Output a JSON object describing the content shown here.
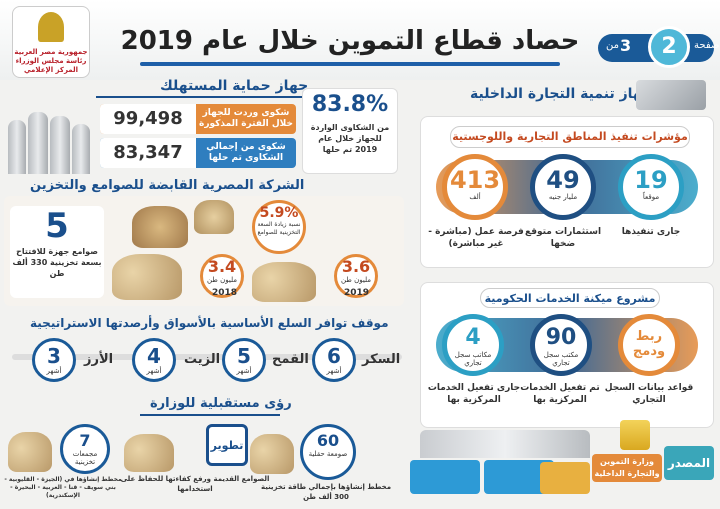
{
  "header": {
    "title": "حصاد قطاع التموين خلال عام 2019",
    "page_label": "صفحة",
    "page_number": "2",
    "page_of": "من",
    "page_total": "3",
    "logo_text": "جمهورية مصر العربية رئاسة مجلس الوزراء المركز الإعلامي"
  },
  "consumer_protection": {
    "heading": "جهاز حماية المستهلك",
    "rows": [
      {
        "value": "99,498",
        "desc": "شكوى وردت للجهاز خلال الفترة المذكورة"
      },
      {
        "value": "83,347",
        "desc": "شكوى من إجمالي الشكاوى تم حلها"
      }
    ],
    "pct_value": "83.8%",
    "pct_desc": "من الشكاوى الواردة للجهاز خلال عام 2019 تم حلها"
  },
  "holding_company": {
    "heading": "الشركة المصرية القابضة للصوامع والتخزين",
    "silos_num": "5",
    "silos_desc": "صوامع جهزة للافتتاح بسعة تخزينية 330 ألف طن",
    "growth_value": "5.9%",
    "growth_desc": "نسبة زيادة السعة التخزينية للصوامع",
    "cap_2018": {
      "value": "3.4",
      "unit": "مليون طن",
      "year": "2018"
    },
    "cap_2019": {
      "value": "3.6",
      "unit": "مليون طن",
      "year": "2019"
    }
  },
  "reserves": {
    "heading": "موقف توافر السلع الأساسية بالأسواق وأرصدتها الاستراتيجية",
    "unit": "أشهر",
    "items": [
      {
        "label": "السكر",
        "months": "6"
      },
      {
        "label": "القمح",
        "months": "5"
      },
      {
        "label": "الزيت",
        "months": "4"
      },
      {
        "label": "الأرز",
        "months": "3"
      }
    ]
  },
  "future_vision": {
    "heading": "رؤى مستقبلية للوزارة",
    "items": [
      {
        "num": "60",
        "unit": "صومعة حقلية",
        "desc": "مخطط إنشاؤها بإجمالي طاقة تخزينية 300 ألف طن"
      },
      {
        "num": "تطوير",
        "unit": "",
        "desc": "الصوامع القديمة ورفع كفاءتها للحفاظ على استخدامها"
      },
      {
        "num": "7",
        "unit": "مجمعات تخزينية",
        "desc": "مخطط إنشاؤها في (الجيزة - القليوبية - بني سويف - قنا - الغربية - البحيرة - الإسكندرية)"
      }
    ]
  },
  "internal_trade": {
    "heading": "جهاز تنمية التجارة الداخلية",
    "logistics": {
      "heading": "مؤشرات تنفيذ المناطق التجارية واللوجستية",
      "items": [
        {
          "num": "19",
          "unit": "موقعاً",
          "desc": "جارى تنفيذها",
          "color": "#2c9fc4"
        },
        {
          "num": "49",
          "unit": "مليار جنيه",
          "desc": "استثمارات متوقع ضخها",
          "color": "#1f4f82"
        },
        {
          "num": "413",
          "unit": "ألف",
          "desc": "فرصة عمل (مباشرة - غير مباشرة)",
          "color": "#e48a3a"
        }
      ]
    },
    "automation": {
      "heading": "مشروع ميكنة الخدمات الحكومية",
      "items": [
        {
          "num": "ربط ودمج",
          "unit": "",
          "desc": "قواعد بيانات السجل التجاري",
          "color": "#e48a3a"
        },
        {
          "num": "90",
          "unit": "مكتب سجل تجاري",
          "desc": "تم تفعيل الخدمات المركزية بها",
          "color": "#1f4f82"
        },
        {
          "num": "4",
          "unit": "مكاتب سجل تجاري",
          "desc": "جارى تفعيل الخدمات المركزية بها",
          "color": "#2c9fc4"
        }
      ]
    }
  },
  "footer": {
    "source_label": "المصدر",
    "ministry": "وزارة التموين والتجارة الداخلية"
  },
  "colors": {
    "navy": "#1a4f8c",
    "orange": "#e48a3a",
    "teal": "#2c9fc4"
  }
}
